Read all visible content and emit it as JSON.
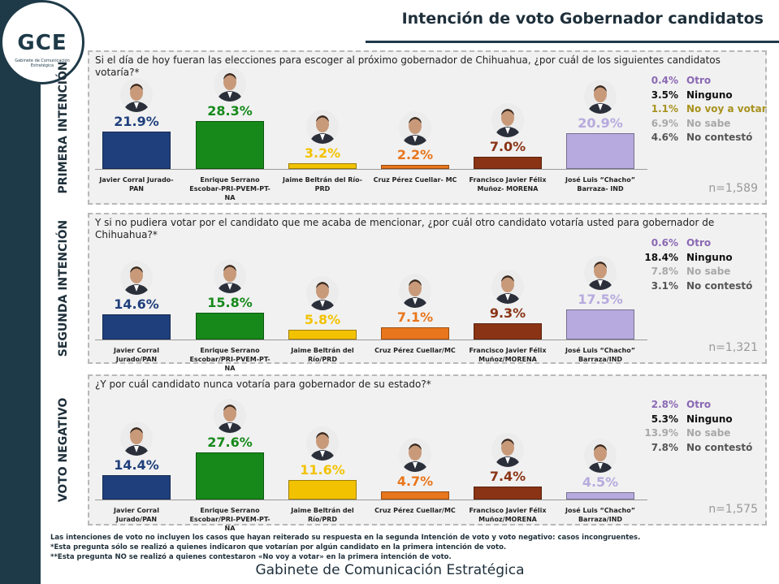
{
  "header": {
    "title": "Intención de voto Gobernador candidatos",
    "logo": "GCE",
    "logo_subtitle": "Gabinete de Comunicación Estratégica"
  },
  "chart_data": [
    {
      "type": "bar",
      "section": "PRIMERA INTENCIÓN",
      "title": "Si el día de hoy fueran las elecciones para escoger al próximo gobernador de Chihuahua, ¿por cuál de los siguientes candidatos votaría?*",
      "categories": [
        "Javier Corral Jurado-PAN",
        "Enrique Serrano Escobar-PRI-PVEM-PT-NA",
        "Jaime Beltrán del Río-PRD",
        "Cruz Pérez Cuellar- MC",
        "Francisco Javier Félix Muñoz- MORENA",
        "José Luis “Chacho” Barraza- IND"
      ],
      "values": [
        21.9,
        28.3,
        3.2,
        2.2,
        7.0,
        20.9
      ],
      "value_labels": [
        "21.9%",
        "28.3%",
        "3.2%",
        "2.2%",
        "7.0%",
        "20.9%"
      ],
      "colors": [
        "#1f3f7c",
        "#16891a",
        "#f2c200",
        "#e8761c",
        "#8a3415",
        "#b7aade"
      ],
      "others": {
        "categories": [
          "Otro",
          "Ninguno",
          "No voy a votar",
          "No sabe",
          "No contestó"
        ],
        "values": [
          0.4,
          3.5,
          1.1,
          6.9,
          4.6
        ],
        "value_labels": [
          "0.4%",
          "3.5%",
          "1.1%",
          "6.9%",
          "4.6%"
        ],
        "colors": [
          "#8a68b3",
          "#111111",
          "#a8921e",
          "#a8a8a8",
          "#555555"
        ]
      },
      "n": "n=1,589"
    },
    {
      "type": "bar",
      "section": "SEGUNDA INTENCIÓN",
      "title": "Y si no pudiera votar por el candidato que me acaba de mencionar, ¿por cuál otro candidato votaría usted para gobernador de Chihuahua?*",
      "categories": [
        "Javier Corral Jurado/PAN",
        "Enrique Serrano Escobar/PRI-PVEM-PT-NA",
        "Jaime Beltrán del Río/PRD",
        "Cruz Pérez Cuellar/MC",
        "Francisco Javier Félix Muñoz/MORENA",
        "José Luis “Chacho” Barraza/IND"
      ],
      "values": [
        14.6,
        15.8,
        5.8,
        7.1,
        9.3,
        17.5
      ],
      "value_labels": [
        "14.6%",
        "15.8%",
        "5.8%",
        "7.1%",
        "9.3%",
        "17.5%"
      ],
      "colors": [
        "#1f3f7c",
        "#16891a",
        "#f2c200",
        "#e8761c",
        "#8a3415",
        "#b7aade"
      ],
      "others": {
        "categories": [
          "Otro",
          "Ninguno",
          "No sabe",
          "No contestó"
        ],
        "values": [
          0.6,
          18.4,
          7.8,
          3.1
        ],
        "value_labels": [
          "0.6%",
          "18.4%",
          "7.8%",
          "3.1%"
        ],
        "colors": [
          "#8a68b3",
          "#111111",
          "#a8a8a8",
          "#555555"
        ]
      },
      "n": "n=1,321"
    },
    {
      "type": "bar",
      "section": "VOTO NEGATIVO",
      "title": "¿Y por cuál candidato nunca votaría para gobernador de su estado?*",
      "categories": [
        "Javier Corral Jurado/PAN",
        "Enrique Serrano Escobar/PRI-PVEM-PT-NA",
        "Jaime Beltrán del Río/PRD",
        "Cruz Pérez Cuellar/MC",
        "Francisco Javier Félix Muñoz/MORENA",
        "José Luis “Chacho” Barraza/IND"
      ],
      "values": [
        14.4,
        27.6,
        11.6,
        4.7,
        7.4,
        4.5
      ],
      "value_labels": [
        "14.4%",
        "27.6%",
        "11.6%",
        "4.7%",
        "7.4%",
        "4.5%"
      ],
      "colors": [
        "#1f3f7c",
        "#16891a",
        "#f2c200",
        "#e8761c",
        "#8a3415",
        "#b7aade"
      ],
      "others": {
        "categories": [
          "Otro",
          "Ninguno",
          "No sabe",
          "No contestó"
        ],
        "values": [
          2.8,
          5.3,
          13.9,
          7.8
        ],
        "value_labels": [
          "2.8%",
          "5.3%",
          "13.9%",
          "7.8%"
        ],
        "colors": [
          "#8a68b3",
          "#111111",
          "#a8a8a8",
          "#555555"
        ]
      },
      "n": "n=1,575"
    }
  ],
  "footnotes": [
    "Las intenciones de voto no incluyen los casos que hayan reiterado su respuesta en la segunda Intención de voto y voto negativo: casos incongruentes.",
    "*Esta pregunta sólo se realizó a quienes indicaron que votarían por algún candidato en la primera intención de voto.",
    "**Esta pregunta NO se realizó a quienes contestaron «No voy a votar» en la primera intención de voto."
  ],
  "footer": "Gabinete de Comunicación Estratégica"
}
